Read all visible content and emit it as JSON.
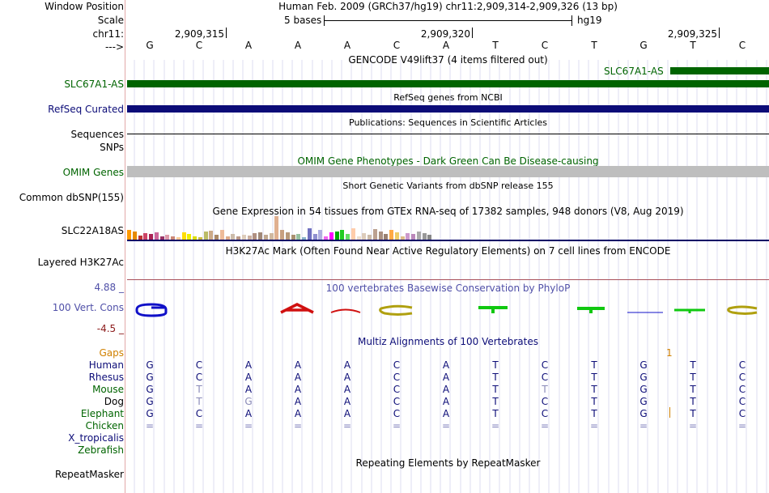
{
  "header": {
    "window_position_label": "Window Position",
    "window_position_value": "Human Feb. 2009 (GRCh37/hg19)   chr11:2,909,314-2,909,326 (13 bp)",
    "scale_label": "Scale",
    "scale_text": "5 bases",
    "scale_assembly": "hg19",
    "chrom_label": "chr11:",
    "coord_ticks": [
      "2,909,315",
      "2,909,320",
      "2,909,325"
    ],
    "strand_label": "--->",
    "bases": [
      "G",
      "C",
      "A",
      "A",
      "A",
      "C",
      "A",
      "T",
      "C",
      "T",
      "G",
      "T",
      "C"
    ]
  },
  "tracks": {
    "gencode_title": "GENCODE V49lift37 (4 items filtered out)",
    "gencode_item_right": "SLC67A1-AS",
    "gencode_label": "SLC67A1-AS",
    "refseq_title": "RefSeq genes from NCBI",
    "refseq_label": "RefSeq Curated",
    "pubs_title": "Publications: Sequences in Scientific Articles",
    "sequences_label": "Sequences",
    "snps_label": "SNPs",
    "omim_title": "OMIM Gene Phenotypes - Dark Green Can Be Disease-causing",
    "omim_label": "OMIM Genes",
    "dbsnp_title": "Short Genetic Variants from dbSNP release 155",
    "dbsnp_label": "Common dbSNP(155)",
    "gtex_title": "Gene Expression in 54 tissues from GTEx RNA-seq of 17382 samples, 948 donors (V8, Aug 2019)",
    "gtex_label": "SLC22A18AS",
    "h3k27_title": "H3K27Ac Mark (Often Found Near Active Regulatory Elements) on 7 cell lines from ENCODE",
    "h3k27_label": "Layered H3K27Ac",
    "cons_title": "100 vertebrates Basewise Conservation by PhyloP",
    "cons_max": "4.88 _",
    "cons_label": "100 Vert. Cons",
    "cons_min": "-4.5 _",
    "multiz_title": "Multiz Alignments of 100 Vertebrates",
    "gaps_label": "Gaps",
    "gaps_value": "1",
    "repeat_title": "Repeating Elements by RepeatMasker",
    "repeat_label": "RepeatMasker"
  },
  "alignment": {
    "species": [
      {
        "name": "Human",
        "bases": [
          "G",
          "C",
          "A",
          "A",
          "A",
          "C",
          "A",
          "T",
          "C",
          "T",
          "G",
          "T",
          "C"
        ]
      },
      {
        "name": "Rhesus",
        "bases": [
          "G",
          "C",
          "A",
          "A",
          "A",
          "C",
          "A",
          "T",
          "C",
          "T",
          "G",
          "T",
          "C"
        ]
      },
      {
        "name": "Mouse",
        "bases": [
          "G",
          "T",
          "A",
          "A",
          "A",
          "C",
          "A",
          "T",
          "T",
          "T",
          "G",
          "T",
          "C"
        ]
      },
      {
        "name": "Dog",
        "bases": [
          "G",
          "T",
          "G",
          "A",
          "A",
          "C",
          "A",
          "T",
          "C",
          "T",
          "G",
          "T",
          "C"
        ]
      },
      {
        "name": "Elephant",
        "bases": [
          "G",
          "C",
          "A",
          "A",
          "A",
          "C",
          "A",
          "T",
          "C",
          "T",
          "G",
          "T",
          "C"
        ]
      },
      {
        "name": "Chicken",
        "bases": [
          "=",
          "=",
          "=",
          "=",
          "=",
          "=",
          "=",
          "=",
          "=",
          "=",
          "=",
          "=",
          "="
        ]
      },
      {
        "name": "X_tropicalis",
        "bases": []
      },
      {
        "name": "Zebrafish",
        "bases": []
      }
    ]
  },
  "colors": {
    "gencode_green": "#006400",
    "refseq_navy": "#0c0c78",
    "omim_gray": "#bebebe",
    "h3k27_line": "#000066",
    "cons_title": "#5050a8",
    "multiz_title": "#0c0c78",
    "gaps_orange": "#d08000",
    "divider": "#e3a8a8"
  }
}
